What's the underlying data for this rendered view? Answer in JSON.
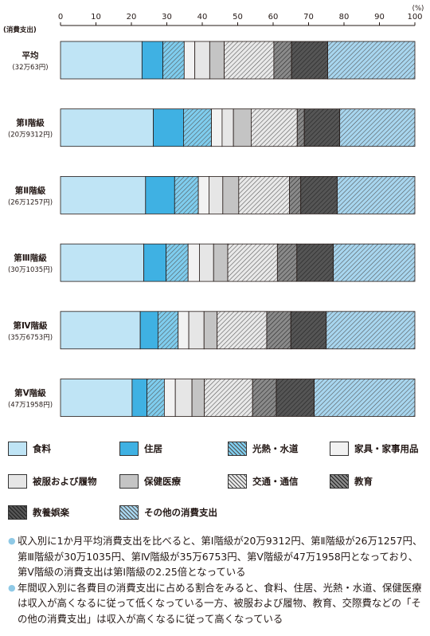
{
  "chart_data": {
    "type": "bar",
    "orientation": "horizontal",
    "stacked": true,
    "y_unit_label": "(消費支出)",
    "x_unit_label": "(%)",
    "xlim": [
      0,
      100
    ],
    "x_ticks": [
      "0",
      "10",
      "20",
      "30",
      "40",
      "50",
      "60",
      "70",
      "80",
      "90",
      "100"
    ],
    "grid": false,
    "legend_position": "bottom",
    "categories": [
      {
        "name": "平均",
        "sub": "(32万63円)"
      },
      {
        "name": "第Ⅰ階級",
        "sub": "(20万9312円)"
      },
      {
        "name": "第Ⅱ階級",
        "sub": "(26万1257円)"
      },
      {
        "name": "第Ⅲ階級",
        "sub": "(30万1035円)"
      },
      {
        "name": "第Ⅳ階級",
        "sub": "(35万6753円)"
      },
      {
        "name": "第Ⅴ階級",
        "sub": "(47万1958円)"
      }
    ],
    "series": [
      {
        "name": "食料",
        "color": "#bfe4f5",
        "pattern": "solid",
        "values": [
          23.0,
          26.2,
          24.0,
          23.5,
          22.5,
          20.2
        ]
      },
      {
        "name": "住居",
        "color": "#3fb1e3",
        "pattern": "solid",
        "values": [
          5.9,
          8.5,
          8.2,
          6.3,
          5.0,
          4.2
        ]
      },
      {
        "name": "光熱・水道",
        "color": "#7fcdee",
        "pattern": "hatch",
        "values": [
          6.0,
          7.9,
          6.7,
          6.2,
          5.7,
          4.9
        ]
      },
      {
        "name": "家具・家事用品",
        "color": "#f2f2f2",
        "pattern": "solid",
        "values": [
          3.0,
          3.0,
          3.0,
          3.2,
          3.0,
          3.1
        ]
      },
      {
        "name": "被服および履物",
        "color": "#e6e6e6",
        "pattern": "solid",
        "values": [
          4.2,
          3.2,
          3.9,
          4.0,
          4.3,
          4.7
        ]
      },
      {
        "name": "保健医療",
        "color": "#c4c4c4",
        "pattern": "solid",
        "values": [
          4.1,
          5.0,
          4.5,
          4.0,
          3.7,
          3.5
        ]
      },
      {
        "name": "交通・通信",
        "color": "#e9e9e9",
        "pattern": "hatch",
        "values": [
          14.0,
          13.0,
          14.3,
          14.0,
          14.0,
          13.6
        ]
      },
      {
        "name": "教育",
        "color": "#8a8a8a",
        "pattern": "hatch",
        "values": [
          5.0,
          2.0,
          3.2,
          5.5,
          6.8,
          6.7
        ]
      },
      {
        "name": "教養娯楽",
        "color": "#555555",
        "pattern": "hatch",
        "values": [
          10.2,
          10.0,
          10.3,
          10.3,
          10.0,
          10.7
        ]
      },
      {
        "name": "その他の消費支出",
        "color": "#a8d6ef",
        "pattern": "hatch",
        "values": [
          24.6,
          21.2,
          21.9,
          23.0,
          25.0,
          28.4
        ]
      }
    ]
  },
  "notes": [
    "収入別に1か月平均消費支出を比べると、第Ⅰ階級が20万9312円、第Ⅱ階級が26万1257円、第Ⅲ階級が30万1035円、第Ⅳ階級が35万6753円、第Ⅴ階級が47万1958円となっており、第Ⅴ階級の消費支出は第Ⅰ階級の2.25倍となっている",
    "年間収入別に各費目の消費支出に占める割合をみると、食料、住居、光熱・水道、保健医療は収入が高くなるに従って低くなっている一方、被服および履物、教育、交際費などの「その他の消費支出」は収入が高くなるに従って高くなっている"
  ]
}
